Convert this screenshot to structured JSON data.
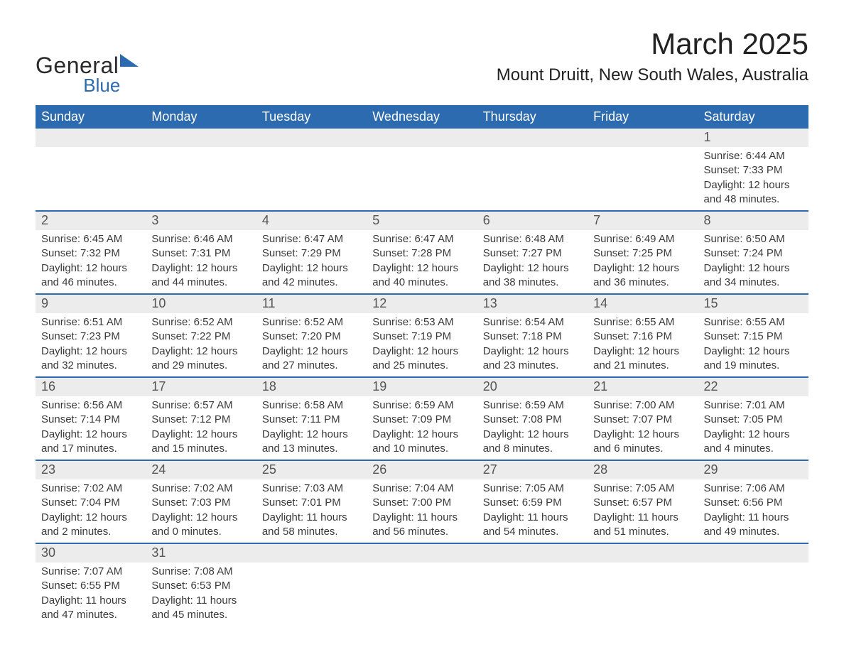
{
  "logo": {
    "word1": "General",
    "word2": "Blue"
  },
  "title": "March 2025",
  "location": "Mount Druitt, New South Wales, Australia",
  "colors": {
    "header_bg": "#2d6bb0",
    "header_fg": "#ffffff",
    "daynum_bg": "#ececec",
    "border": "#2d6bb0",
    "text": "#3a3a3a",
    "page_bg": "#ffffff"
  },
  "typography": {
    "title_fontsize": 42,
    "location_fontsize": 24,
    "th_fontsize": 18,
    "daynum_fontsize": 18,
    "body_fontsize": 15
  },
  "weekday_headers": [
    "Sunday",
    "Monday",
    "Tuesday",
    "Wednesday",
    "Thursday",
    "Friday",
    "Saturday"
  ],
  "weeks": [
    [
      null,
      null,
      null,
      null,
      null,
      null,
      {
        "n": "1",
        "sunrise": "6:44 AM",
        "sunset": "7:33 PM",
        "daylight": "12 hours and 48 minutes."
      }
    ],
    [
      {
        "n": "2",
        "sunrise": "6:45 AM",
        "sunset": "7:32 PM",
        "daylight": "12 hours and 46 minutes."
      },
      {
        "n": "3",
        "sunrise": "6:46 AM",
        "sunset": "7:31 PM",
        "daylight": "12 hours and 44 minutes."
      },
      {
        "n": "4",
        "sunrise": "6:47 AM",
        "sunset": "7:29 PM",
        "daylight": "12 hours and 42 minutes."
      },
      {
        "n": "5",
        "sunrise": "6:47 AM",
        "sunset": "7:28 PM",
        "daylight": "12 hours and 40 minutes."
      },
      {
        "n": "6",
        "sunrise": "6:48 AM",
        "sunset": "7:27 PM",
        "daylight": "12 hours and 38 minutes."
      },
      {
        "n": "7",
        "sunrise": "6:49 AM",
        "sunset": "7:25 PM",
        "daylight": "12 hours and 36 minutes."
      },
      {
        "n": "8",
        "sunrise": "6:50 AM",
        "sunset": "7:24 PM",
        "daylight": "12 hours and 34 minutes."
      }
    ],
    [
      {
        "n": "9",
        "sunrise": "6:51 AM",
        "sunset": "7:23 PM",
        "daylight": "12 hours and 32 minutes."
      },
      {
        "n": "10",
        "sunrise": "6:52 AM",
        "sunset": "7:22 PM",
        "daylight": "12 hours and 29 minutes."
      },
      {
        "n": "11",
        "sunrise": "6:52 AM",
        "sunset": "7:20 PM",
        "daylight": "12 hours and 27 minutes."
      },
      {
        "n": "12",
        "sunrise": "6:53 AM",
        "sunset": "7:19 PM",
        "daylight": "12 hours and 25 minutes."
      },
      {
        "n": "13",
        "sunrise": "6:54 AM",
        "sunset": "7:18 PM",
        "daylight": "12 hours and 23 minutes."
      },
      {
        "n": "14",
        "sunrise": "6:55 AM",
        "sunset": "7:16 PM",
        "daylight": "12 hours and 21 minutes."
      },
      {
        "n": "15",
        "sunrise": "6:55 AM",
        "sunset": "7:15 PM",
        "daylight": "12 hours and 19 minutes."
      }
    ],
    [
      {
        "n": "16",
        "sunrise": "6:56 AM",
        "sunset": "7:14 PM",
        "daylight": "12 hours and 17 minutes."
      },
      {
        "n": "17",
        "sunrise": "6:57 AM",
        "sunset": "7:12 PM",
        "daylight": "12 hours and 15 minutes."
      },
      {
        "n": "18",
        "sunrise": "6:58 AM",
        "sunset": "7:11 PM",
        "daylight": "12 hours and 13 minutes."
      },
      {
        "n": "19",
        "sunrise": "6:59 AM",
        "sunset": "7:09 PM",
        "daylight": "12 hours and 10 minutes."
      },
      {
        "n": "20",
        "sunrise": "6:59 AM",
        "sunset": "7:08 PM",
        "daylight": "12 hours and 8 minutes."
      },
      {
        "n": "21",
        "sunrise": "7:00 AM",
        "sunset": "7:07 PM",
        "daylight": "12 hours and 6 minutes."
      },
      {
        "n": "22",
        "sunrise": "7:01 AM",
        "sunset": "7:05 PM",
        "daylight": "12 hours and 4 minutes."
      }
    ],
    [
      {
        "n": "23",
        "sunrise": "7:02 AM",
        "sunset": "7:04 PM",
        "daylight": "12 hours and 2 minutes."
      },
      {
        "n": "24",
        "sunrise": "7:02 AM",
        "sunset": "7:03 PM",
        "daylight": "12 hours and 0 minutes."
      },
      {
        "n": "25",
        "sunrise": "7:03 AM",
        "sunset": "7:01 PM",
        "daylight": "11 hours and 58 minutes."
      },
      {
        "n": "26",
        "sunrise": "7:04 AM",
        "sunset": "7:00 PM",
        "daylight": "11 hours and 56 minutes."
      },
      {
        "n": "27",
        "sunrise": "7:05 AM",
        "sunset": "6:59 PM",
        "daylight": "11 hours and 54 minutes."
      },
      {
        "n": "28",
        "sunrise": "7:05 AM",
        "sunset": "6:57 PM",
        "daylight": "11 hours and 51 minutes."
      },
      {
        "n": "29",
        "sunrise": "7:06 AM",
        "sunset": "6:56 PM",
        "daylight": "11 hours and 49 minutes."
      }
    ],
    [
      {
        "n": "30",
        "sunrise": "7:07 AM",
        "sunset": "6:55 PM",
        "daylight": "11 hours and 47 minutes."
      },
      {
        "n": "31",
        "sunrise": "7:08 AM",
        "sunset": "6:53 PM",
        "daylight": "11 hours and 45 minutes."
      },
      null,
      null,
      null,
      null,
      null
    ]
  ],
  "labels": {
    "sunrise": "Sunrise: ",
    "sunset": "Sunset: ",
    "daylight": "Daylight: "
  }
}
